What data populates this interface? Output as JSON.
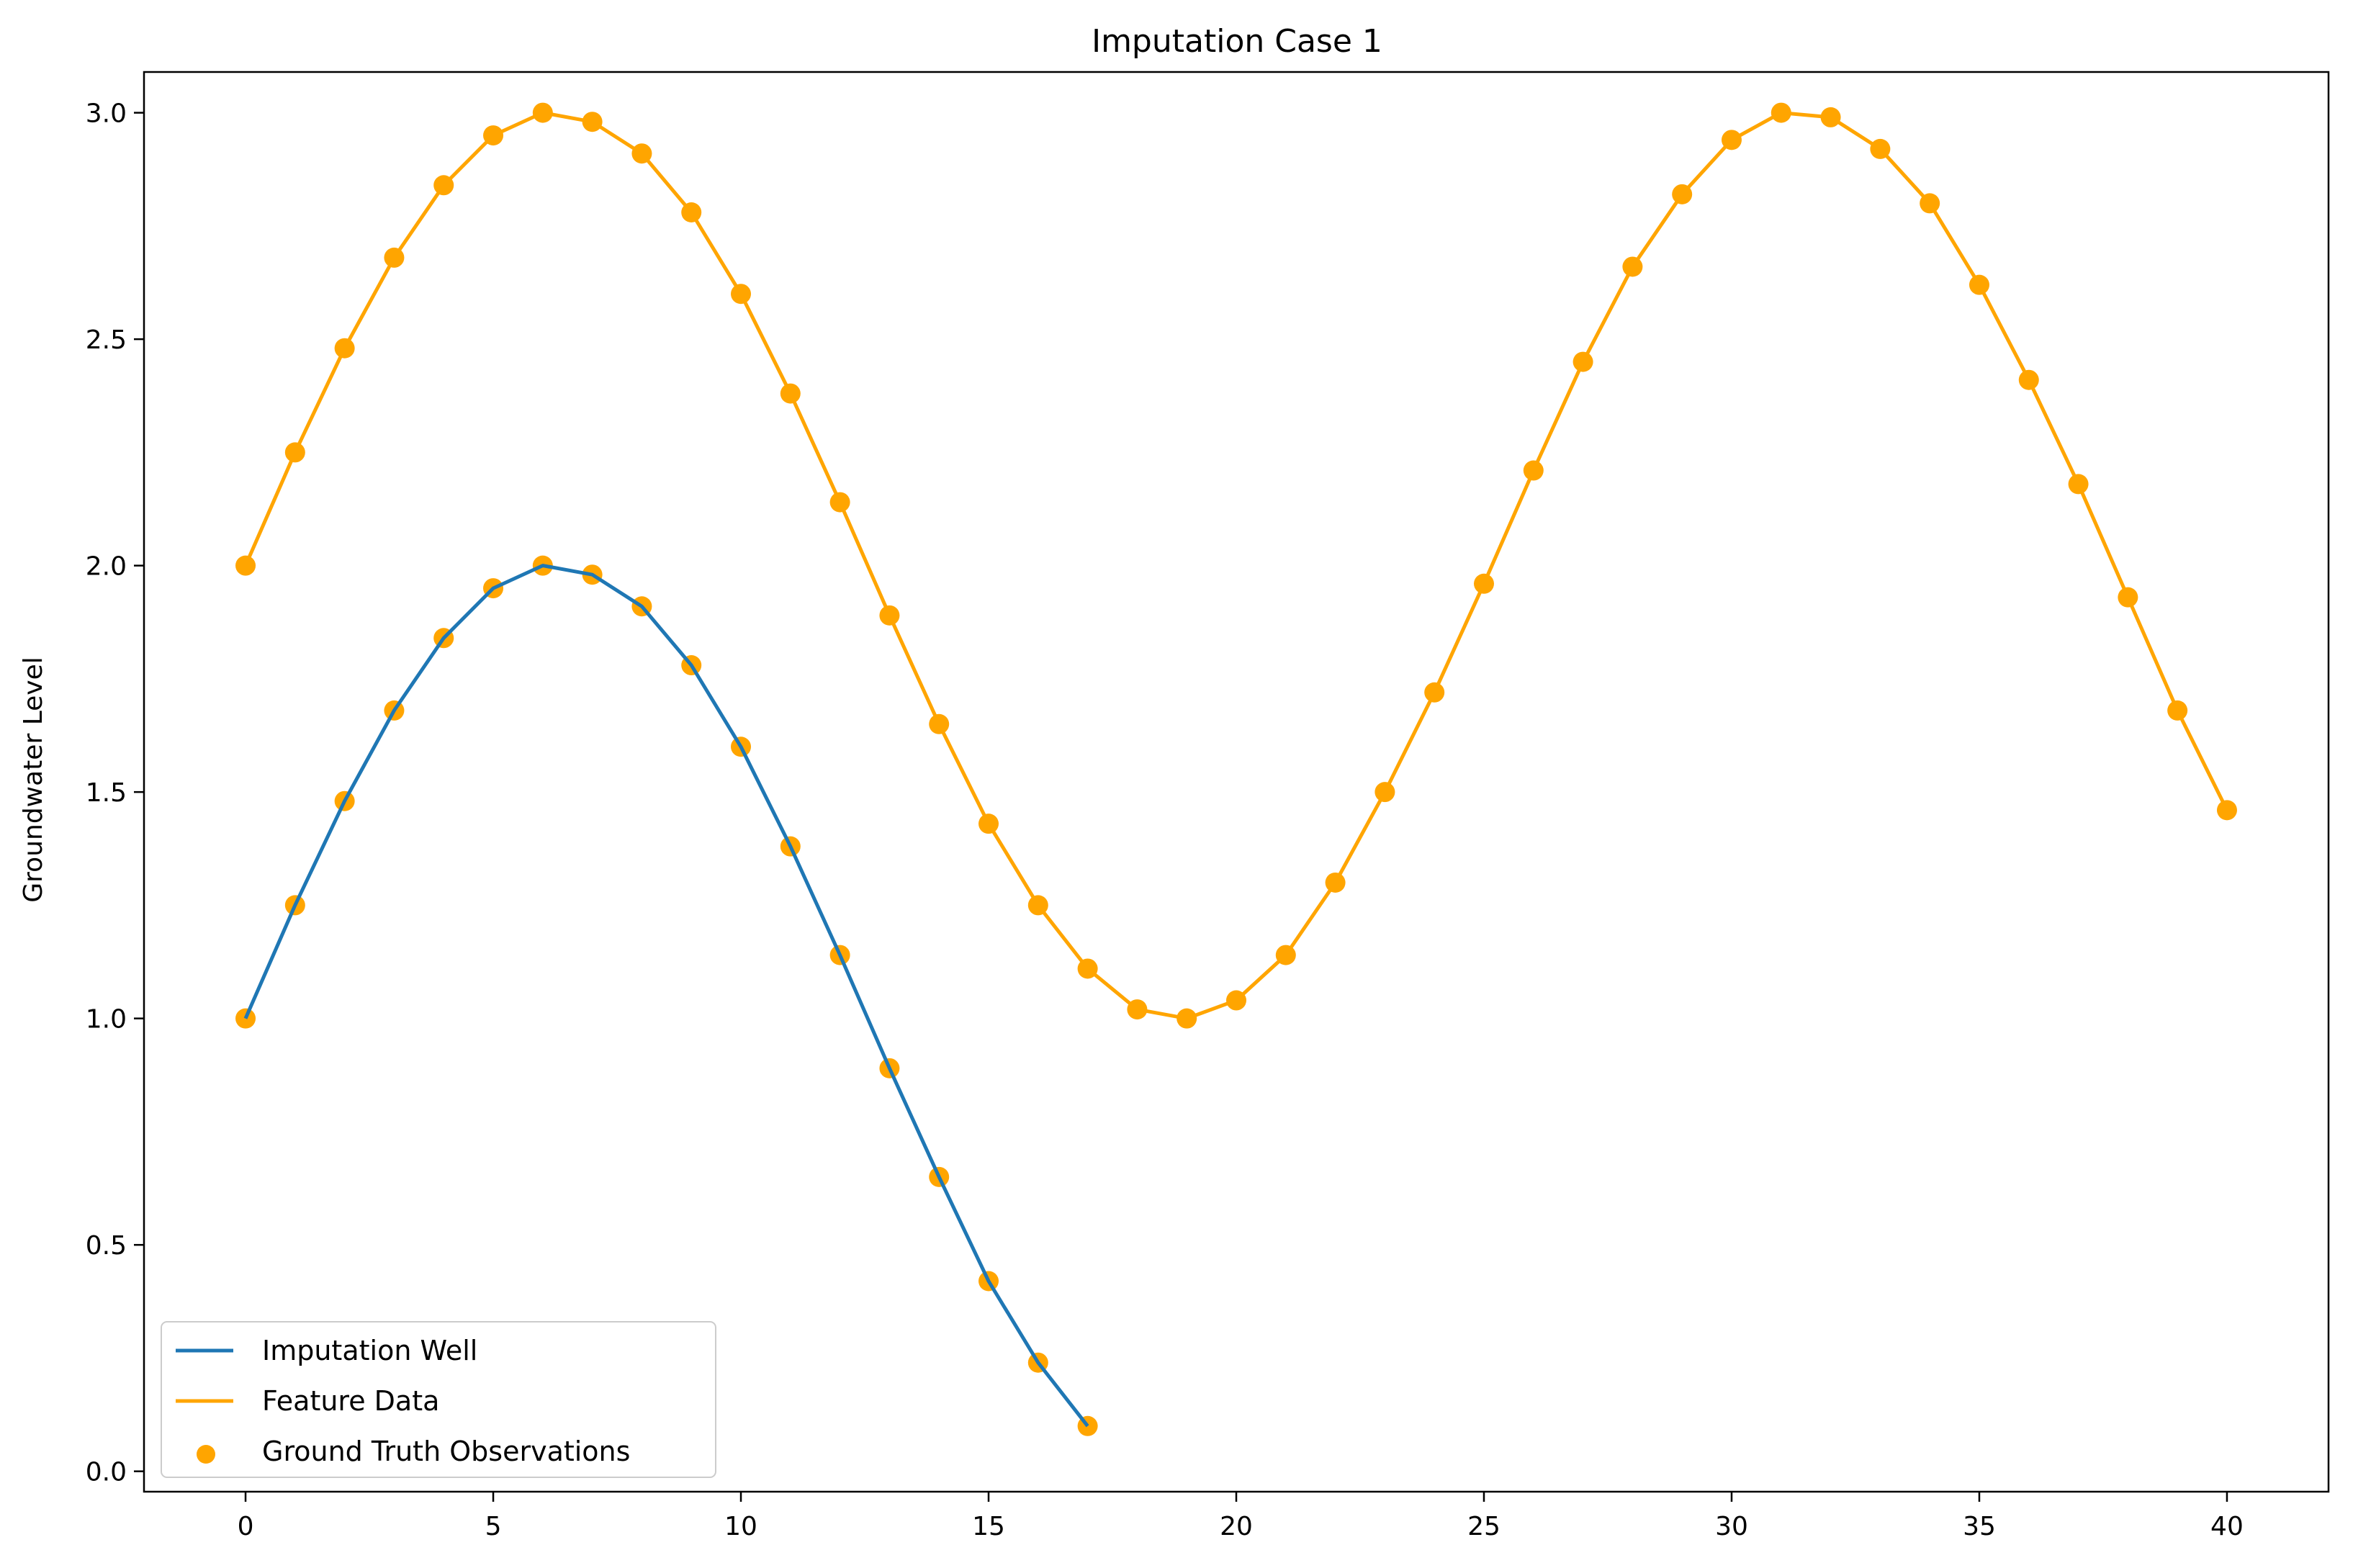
{
  "chart_data": {
    "type": "line",
    "title": "Imputation Case 1",
    "xlabel": "",
    "ylabel": "Groundwater Level",
    "xlim": [
      -2.05,
      42.05
    ],
    "ylim": [
      -0.045,
      3.09
    ],
    "xticks": [
      0,
      5,
      10,
      15,
      20,
      25,
      30,
      35,
      40
    ],
    "xtick_labels": [
      "0",
      "5",
      "10",
      "15",
      "20",
      "25",
      "30",
      "35",
      "40"
    ],
    "yticks": [
      0.0,
      0.5,
      1.0,
      1.5,
      2.0,
      2.5,
      3.0
    ],
    "ytick_labels": [
      "0.0",
      "0.5",
      "1.0",
      "1.5",
      "2.0",
      "2.5",
      "3.0"
    ],
    "grid": false,
    "legend_position": "lower-left",
    "series": [
      {
        "name": "Imputation Well",
        "kind": "line",
        "color": "#1f77b4",
        "x": [
          0,
          1,
          2,
          3,
          4,
          5,
          6,
          7,
          8,
          9,
          10,
          11,
          12,
          13,
          14,
          15,
          16,
          17
        ],
        "y": [
          1.0,
          1.25,
          1.48,
          1.68,
          1.84,
          1.95,
          2.0,
          1.98,
          1.91,
          1.78,
          1.6,
          1.38,
          1.14,
          0.89,
          0.65,
          0.42,
          0.24,
          0.1
        ]
      },
      {
        "name": "Feature Data",
        "kind": "line",
        "color": "#ffa500",
        "x": [
          0,
          1,
          2,
          3,
          4,
          5,
          6,
          7,
          8,
          9,
          10,
          11,
          12,
          13,
          14,
          15,
          16,
          17,
          18,
          19,
          20,
          21,
          22,
          23,
          24,
          25,
          26,
          27,
          28,
          29,
          30,
          31,
          32,
          33,
          34,
          35,
          36,
          37,
          38,
          39,
          40
        ],
        "y": [
          2.0,
          2.25,
          2.48,
          2.68,
          2.84,
          2.95,
          3.0,
          2.98,
          2.91,
          2.78,
          2.6,
          2.38,
          2.14,
          1.89,
          1.65,
          1.43,
          1.25,
          1.11,
          1.02,
          1.0,
          1.04,
          1.14,
          1.3,
          1.5,
          1.72,
          1.96,
          2.21,
          2.45,
          2.66,
          2.82,
          2.94,
          3.0,
          2.99,
          2.92,
          2.8,
          2.62,
          2.41,
          2.18,
          1.93,
          1.68,
          1.46
        ]
      },
      {
        "name": "Ground Truth Observations",
        "kind": "scatter",
        "color": "#ffa500",
        "points": [
          [
            0,
            2.0
          ],
          [
            1,
            2.25
          ],
          [
            2,
            2.48
          ],
          [
            3,
            2.68
          ],
          [
            4,
            2.84
          ],
          [
            5,
            2.95
          ],
          [
            6,
            3.0
          ],
          [
            7,
            2.98
          ],
          [
            8,
            2.91
          ],
          [
            9,
            2.78
          ],
          [
            10,
            2.6
          ],
          [
            11,
            2.38
          ],
          [
            12,
            2.14
          ],
          [
            13,
            1.89
          ],
          [
            14,
            1.65
          ],
          [
            15,
            1.43
          ],
          [
            16,
            1.25
          ],
          [
            17,
            1.11
          ],
          [
            18,
            1.02
          ],
          [
            19,
            1.0
          ],
          [
            20,
            1.04
          ],
          [
            21,
            1.14
          ],
          [
            22,
            1.3
          ],
          [
            23,
            1.5
          ],
          [
            24,
            1.72
          ],
          [
            25,
            1.96
          ],
          [
            26,
            2.21
          ],
          [
            27,
            2.45
          ],
          [
            28,
            2.66
          ],
          [
            29,
            2.82
          ],
          [
            30,
            2.94
          ],
          [
            31,
            3.0
          ],
          [
            32,
            2.99
          ],
          [
            33,
            2.92
          ],
          [
            34,
            2.8
          ],
          [
            35,
            2.62
          ],
          [
            36,
            2.41
          ],
          [
            37,
            2.18
          ],
          [
            38,
            1.93
          ],
          [
            39,
            1.68
          ],
          [
            40,
            1.46
          ],
          [
            0,
            1.0
          ],
          [
            1,
            1.25
          ],
          [
            2,
            1.48
          ],
          [
            3,
            1.68
          ],
          [
            4,
            1.84
          ],
          [
            5,
            1.95
          ],
          [
            6,
            2.0
          ],
          [
            7,
            1.98
          ],
          [
            8,
            1.91
          ],
          [
            9,
            1.78
          ],
          [
            10,
            1.6
          ],
          [
            11,
            1.38
          ],
          [
            12,
            1.14
          ],
          [
            13,
            0.89
          ],
          [
            14,
            0.65
          ],
          [
            15,
            0.42
          ],
          [
            16,
            0.24
          ],
          [
            17,
            0.1
          ]
        ]
      }
    ]
  }
}
